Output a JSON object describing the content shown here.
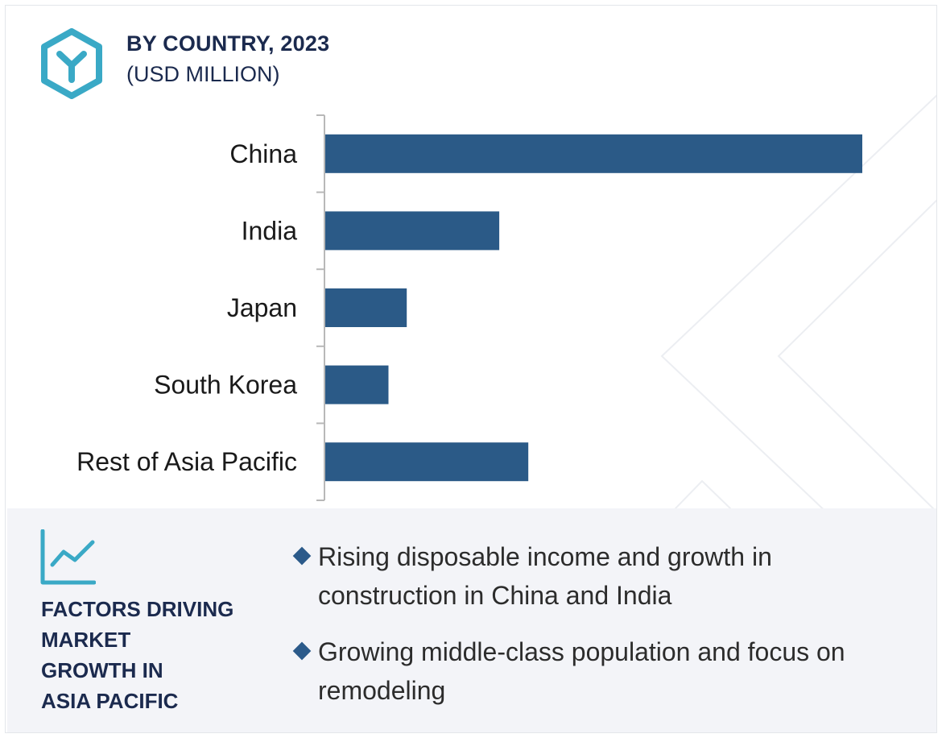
{
  "header": {
    "title": "BY COUNTRY, 2023",
    "subtitle": "(USD MILLION)",
    "logo_icon": "hexagon-y-logo-icon"
  },
  "colors": {
    "bar": "#2b5a87",
    "accent": "#3aa9c6",
    "title": "#1b2a4e",
    "panel_bg": "#f3f4f8"
  },
  "chart_data": {
    "type": "bar",
    "orientation": "horizontal",
    "categories": [
      "China",
      "India",
      "Japan",
      "South Korea",
      "Rest of Asia Pacific"
    ],
    "values": [
      100,
      32.5,
      15.3,
      11.9,
      37.9
    ],
    "title": "BY COUNTRY, 2023",
    "subtitle": "(USD MILLION)",
    "xlabel": "",
    "ylabel": "",
    "xlim": [
      0,
      100
    ],
    "grid": false,
    "legend": "none",
    "value_labels": false
  },
  "drivers": {
    "icon": "line-chart-icon",
    "title_lines": [
      "FACTORS DRIVING",
      "MARKET",
      "GROWTH IN",
      "ASIA PACIFIC"
    ],
    "bullets": [
      {
        "lines": [
          "Rising disposable income and growth in",
          "construction in China and India"
        ]
      },
      {
        "lines": [
          "Growing middle-class population and focus on",
          "remodeling"
        ]
      }
    ]
  }
}
